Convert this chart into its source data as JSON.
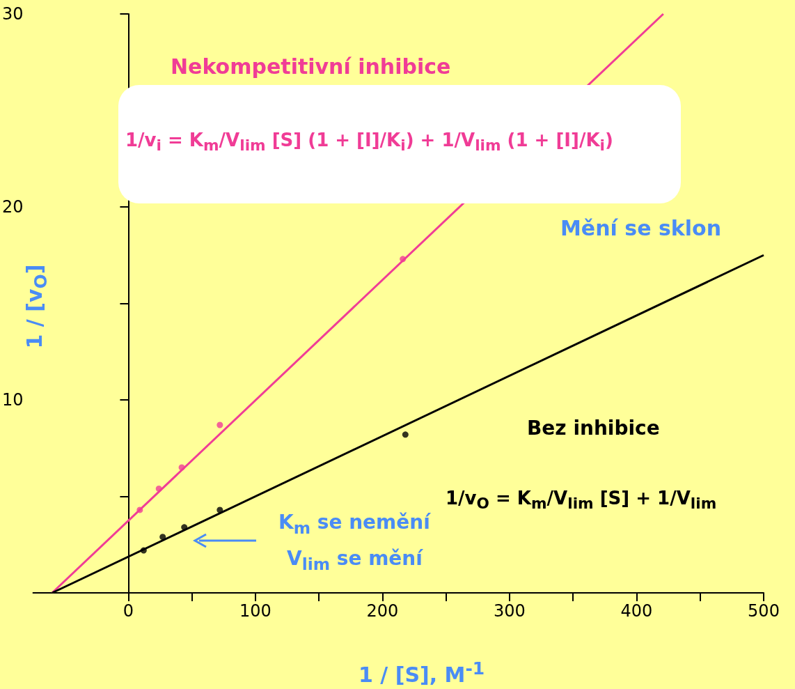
{
  "chart_data": {
    "type": "scatter",
    "xlabel": "1 / [S], M$^{-1}$",
    "ylabel": "1 / [v$_{O}$]",
    "xlim": [
      -75,
      500
    ],
    "ylim": [
      0,
      30
    ],
    "xticks": [
      0,
      {
        "value": 50,
        "label": null
      },
      100,
      {
        "value": 150,
        "label": null
      },
      200,
      {
        "value": 250,
        "label": null
      },
      300,
      {
        "value": 350,
        "label": null
      },
      400,
      {
        "value": 450,
        "label": null
      },
      500
    ],
    "yticks": [
      {
        "value": 5,
        "label": null
      },
      10,
      {
        "value": 15,
        "label": null
      },
      20,
      {
        "value": 25,
        "label": null
      },
      30
    ],
    "series": [
      {
        "type": "line",
        "marker": "none",
        "color": "#f03c96",
        "x": [
          -60,
          421
        ],
        "values": [
          0,
          30
        ]
      },
      {
        "type": "line",
        "marker": "none",
        "color": "#000000",
        "x": [
          -60,
          500
        ],
        "values": [
          0,
          17.5
        ]
      },
      {
        "marker": "circle",
        "color": "#f03c96",
        "x": [
          9,
          24,
          42,
          72,
          216
        ],
        "values": [
          4.3,
          5.4,
          6.5,
          8.7,
          17.3
        ]
      },
      {
        "marker": "circle",
        "color": "#000000",
        "x": [
          12,
          27,
          44,
          72,
          218
        ],
        "values": [
          2.2,
          2.9,
          3.4,
          4.3,
          8.2
        ]
      }
    ],
    "annotations": [
      "Nekompetitivní inhibice",
      "1/v$_{i}$ = K$_{m}$/V$_{lim}$ [S] (1 + [I]/K$_{i}$) + 1/V$_{lim}$ (1 + [I]/K$_{i}$)",
      "Mění se sklon",
      "Bez inhibice",
      "1/v$_{O}$ = K$_{m}$/V$_{lim}$ [S] + 1/V$_{lim}$",
      "K$_{m}$ se nemění",
      "V$_{lim}$ se mění"
    ]
  }
}
